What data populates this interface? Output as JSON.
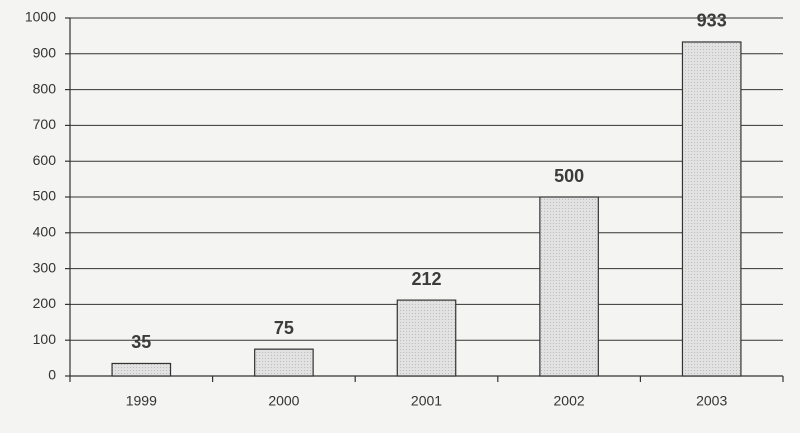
{
  "chart_data": {
    "type": "bar",
    "categories": [
      "1999",
      "2000",
      "2001",
      "2002",
      "2003"
    ],
    "values": [
      35,
      75,
      212,
      500,
      933
    ],
    "color": "#dcdcdc",
    "ylim": [
      0,
      1000
    ],
    "yticks": [
      0,
      100,
      200,
      300,
      400,
      500,
      600,
      700,
      800,
      900,
      1000
    ],
    "grid": true
  }
}
